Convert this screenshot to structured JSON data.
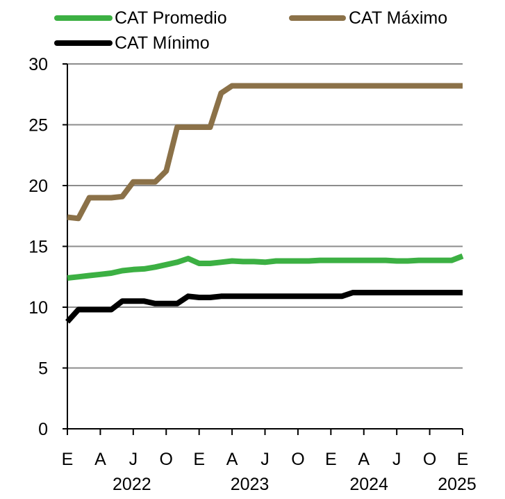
{
  "chart_data": {
    "type": "line",
    "title": "",
    "xlabel": "",
    "ylabel": "",
    "ylim": [
      0,
      30
    ],
    "yticks": [
      0,
      5,
      10,
      15,
      20,
      25,
      30
    ],
    "grid": true,
    "legend_position": "top",
    "x_tick_labels": [
      "E",
      "A",
      "J",
      "O",
      "E",
      "A",
      "J",
      "O",
      "E",
      "A",
      "J",
      "O",
      "E"
    ],
    "year_labels": [
      "2022",
      "2023",
      "2024",
      "2025"
    ],
    "x": [
      "2022-01",
      "2022-02",
      "2022-03",
      "2022-04",
      "2022-05",
      "2022-06",
      "2022-07",
      "2022-08",
      "2022-09",
      "2022-10",
      "2022-11",
      "2022-12",
      "2023-01",
      "2023-02",
      "2023-03",
      "2023-04",
      "2023-05",
      "2023-06",
      "2023-07",
      "2023-08",
      "2023-09",
      "2023-10",
      "2023-11",
      "2023-12",
      "2024-01",
      "2024-02",
      "2024-03",
      "2024-04",
      "2024-05",
      "2024-06",
      "2024-07",
      "2024-08",
      "2024-09",
      "2024-10",
      "2024-11",
      "2024-12",
      "2025-01"
    ],
    "series": [
      {
        "name": "CAT Promedio",
        "color": "#3cb043",
        "values": [
          12.4,
          12.5,
          12.6,
          12.7,
          12.8,
          13.0,
          13.1,
          13.15,
          13.3,
          13.5,
          13.7,
          14.0,
          13.6,
          13.6,
          13.7,
          13.8,
          13.75,
          13.75,
          13.7,
          13.8,
          13.8,
          13.8,
          13.8,
          13.85,
          13.85,
          13.85,
          13.85,
          13.85,
          13.85,
          13.85,
          13.8,
          13.8,
          13.85,
          13.85,
          13.85,
          13.85,
          14.2
        ]
      },
      {
        "name": "CAT Máximo",
        "color": "#8b7148",
        "values": [
          17.4,
          17.3,
          19.0,
          19.0,
          19.0,
          19.1,
          20.3,
          20.3,
          20.3,
          21.2,
          24.8,
          24.8,
          24.8,
          24.8,
          27.6,
          28.2,
          28.2,
          28.2,
          28.2,
          28.2,
          28.2,
          28.2,
          28.2,
          28.2,
          28.2,
          28.2,
          28.2,
          28.2,
          28.2,
          28.2,
          28.2,
          28.2,
          28.2,
          28.2,
          28.2,
          28.2,
          28.2
        ]
      },
      {
        "name": "CAT Mínimo",
        "color": "#000000",
        "values": [
          8.8,
          9.8,
          9.8,
          9.8,
          9.8,
          10.5,
          10.5,
          10.5,
          10.3,
          10.3,
          10.3,
          10.9,
          10.8,
          10.8,
          10.9,
          10.9,
          10.9,
          10.9,
          10.9,
          10.9,
          10.9,
          10.9,
          10.9,
          10.9,
          10.9,
          10.9,
          11.2,
          11.2,
          11.2,
          11.2,
          11.2,
          11.2,
          11.2,
          11.2,
          11.2,
          11.2,
          11.2
        ]
      }
    ]
  }
}
